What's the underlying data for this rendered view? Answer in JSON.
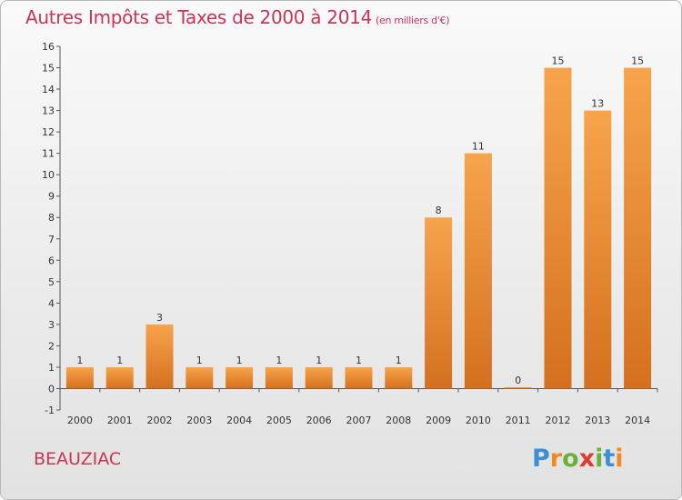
{
  "title": "Autres Impôts et Taxes de 2000 à 2014",
  "title_unit": "(en milliers d'€)",
  "commune": "BEAUZIAC",
  "logo": {
    "letters": [
      "P",
      "r",
      "o",
      "x",
      "i",
      "t",
      "i"
    ],
    "colors": [
      "#3a8fd6",
      "#f08a1c",
      "#6ab13c",
      "#e23a2e",
      "#6ab13c",
      "#3a8fd6",
      "#f08a1c"
    ]
  },
  "colors": {
    "bar_top": "#f7a44c",
    "bar_bottom": "#d4701f",
    "axis": "#555555",
    "title": "#cc3355"
  },
  "chart_data": {
    "type": "bar",
    "categories": [
      "2000",
      "2001",
      "2002",
      "2003",
      "2004",
      "2005",
      "2006",
      "2007",
      "2008",
      "2009",
      "2010",
      "2011",
      "2012",
      "2013",
      "2014"
    ],
    "values": [
      1,
      1,
      3,
      1,
      1,
      1,
      1,
      1,
      1,
      8,
      11,
      0,
      15,
      13,
      15
    ],
    "ylim": [
      -1,
      16
    ],
    "yticks": [
      "-1",
      "0",
      "1",
      "2",
      "3",
      "4",
      "5",
      "6",
      "7",
      "8",
      "9",
      "10",
      "11",
      "12",
      "13",
      "14",
      "15",
      "16"
    ],
    "data_labels": [
      "1",
      "1",
      "3",
      "1",
      "1",
      "1",
      "1",
      "1",
      "1",
      "8",
      "11",
      "0",
      "15",
      "13",
      "15"
    ],
    "grid": false
  }
}
